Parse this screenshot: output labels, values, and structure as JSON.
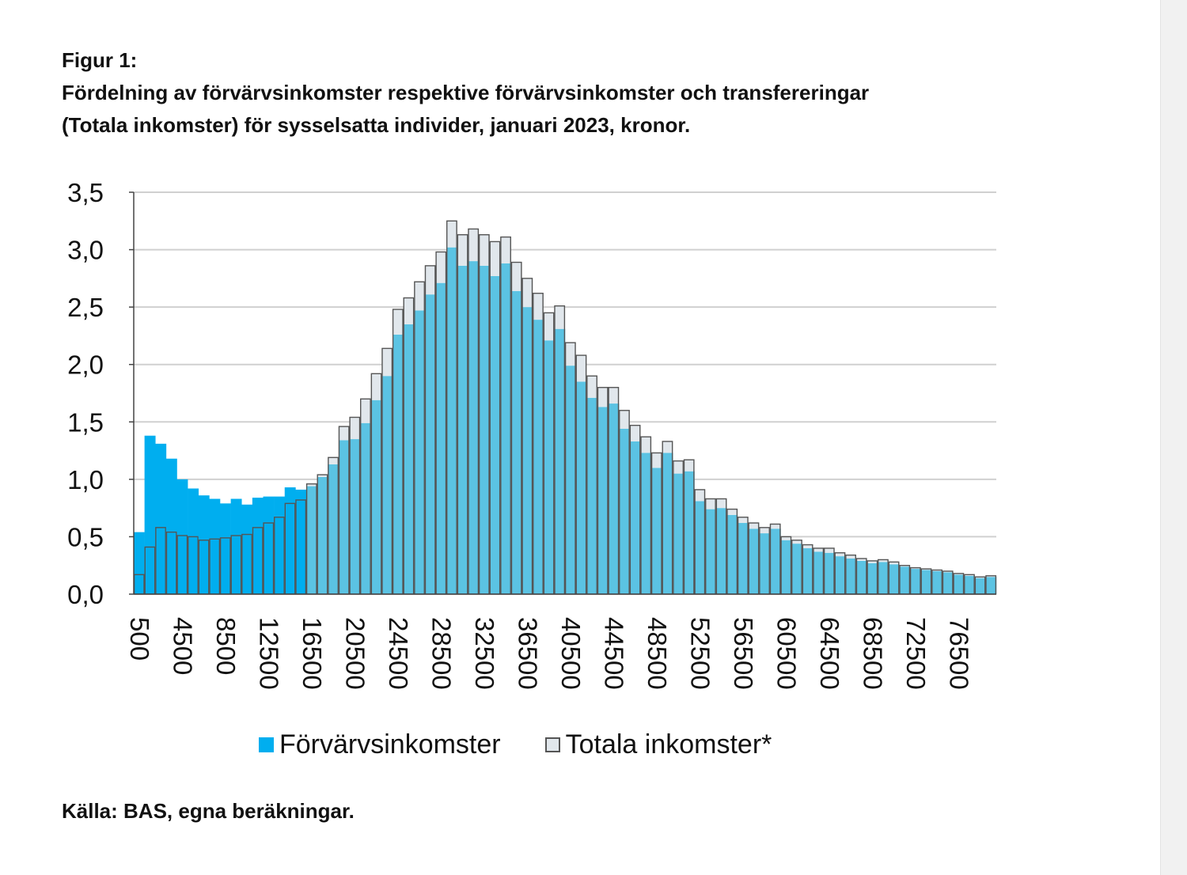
{
  "figure": {
    "label": "Figur 1:",
    "title_line1": "Fördelning av förvärvsinkomster respektive förvärvsinkomster och transfereringar",
    "title_line2": "(Totala inkomster) för sysselsatta individer, januari 2023, kronor.",
    "source": "Källa: BAS, egna beräkningar."
  },
  "colors": {
    "forvarv_low_income": "#00aeef",
    "forvarv": "#5bc3e3",
    "totala_fill": "#e1e7ec",
    "bar_outline": "#555555",
    "grid": "#d0d0d0"
  },
  "chart_data": {
    "type": "bar",
    "title": "",
    "xlabel": "",
    "ylabel": "",
    "ylim": [
      0,
      3.5
    ],
    "yticks": [
      0.0,
      0.5,
      1.0,
      1.5,
      2.0,
      2.5,
      3.0,
      3.5
    ],
    "ytick_labels": [
      "0,0",
      "0,5",
      "1,0",
      "1,5",
      "2,0",
      "2,5",
      "3,0",
      "3,5"
    ],
    "grid": true,
    "legend_position": "bottom",
    "categories": [
      500,
      1500,
      2500,
      3500,
      4500,
      5500,
      6500,
      7500,
      8500,
      9500,
      10500,
      11500,
      12500,
      13500,
      14500,
      15500,
      16500,
      17500,
      18500,
      19500,
      20500,
      21500,
      22500,
      23500,
      24500,
      25500,
      26500,
      27500,
      28500,
      29500,
      30500,
      31500,
      32500,
      33500,
      34500,
      35500,
      36500,
      37500,
      38500,
      39500,
      40500,
      41500,
      42500,
      43500,
      44500,
      45500,
      46500,
      47500,
      48500,
      49500,
      50500,
      51500,
      52500,
      53500,
      54500,
      55500,
      56500,
      57500,
      58500,
      59500,
      60500,
      61500,
      62500,
      63500,
      64500,
      65500,
      66500,
      67500,
      68500,
      69500,
      70500,
      71500,
      72500,
      73500,
      74500,
      75500,
      76500,
      77500,
      78500,
      79500
    ],
    "xtick_labels": [
      "500",
      "4500",
      "8500",
      "12500",
      "16500",
      "20500",
      "24500",
      "28500",
      "32500",
      "36500",
      "40500",
      "44500",
      "48500",
      "52500",
      "56500",
      "60500",
      "64500",
      "68500",
      "72500",
      "76500"
    ],
    "series": [
      {
        "name": "Förvärvsinkomster",
        "values": [
          0.54,
          1.38,
          1.31,
          1.18,
          1.0,
          0.92,
          0.86,
          0.83,
          0.79,
          0.83,
          0.78,
          0.84,
          0.85,
          0.85,
          0.93,
          0.91,
          0.94,
          1.02,
          1.13,
          1.34,
          1.35,
          1.49,
          1.69,
          1.9,
          2.26,
          2.35,
          2.47,
          2.61,
          2.71,
          3.02,
          2.86,
          2.9,
          2.86,
          2.77,
          2.88,
          2.64,
          2.5,
          2.39,
          2.21,
          2.31,
          1.99,
          1.85,
          1.71,
          1.63,
          1.66,
          1.44,
          1.33,
          1.23,
          1.1,
          1.23,
          1.05,
          1.07,
          0.81,
          0.74,
          0.75,
          0.69,
          0.62,
          0.57,
          0.53,
          0.57,
          0.47,
          0.44,
          0.4,
          0.37,
          0.36,
          0.33,
          0.31,
          0.29,
          0.27,
          0.28,
          0.26,
          0.24,
          0.22,
          0.21,
          0.2,
          0.19,
          0.17,
          0.16,
          0.14,
          0.15
        ]
      },
      {
        "name": "Totala inkomster*",
        "values": [
          0.17,
          0.41,
          0.58,
          0.54,
          0.51,
          0.5,
          0.47,
          0.48,
          0.49,
          0.51,
          0.52,
          0.58,
          0.62,
          0.67,
          0.79,
          0.82,
          0.96,
          1.04,
          1.19,
          1.46,
          1.54,
          1.7,
          1.92,
          2.14,
          2.48,
          2.58,
          2.72,
          2.86,
          2.98,
          3.25,
          3.13,
          3.18,
          3.13,
          3.07,
          3.11,
          2.89,
          2.75,
          2.62,
          2.45,
          2.51,
          2.19,
          2.08,
          1.9,
          1.8,
          1.8,
          1.6,
          1.47,
          1.37,
          1.23,
          1.33,
          1.16,
          1.17,
          0.91,
          0.83,
          0.83,
          0.74,
          0.67,
          0.62,
          0.58,
          0.61,
          0.5,
          0.47,
          0.43,
          0.4,
          0.4,
          0.36,
          0.34,
          0.31,
          0.29,
          0.3,
          0.28,
          0.25,
          0.23,
          0.22,
          0.21,
          0.2,
          0.18,
          0.17,
          0.15,
          0.16
        ]
      }
    ]
  },
  "legend": {
    "items": [
      {
        "label": "Förvärvsinkomster",
        "color": "#00aeef"
      },
      {
        "label": "Totala inkomster*",
        "color": "#e1e7ec"
      }
    ]
  }
}
